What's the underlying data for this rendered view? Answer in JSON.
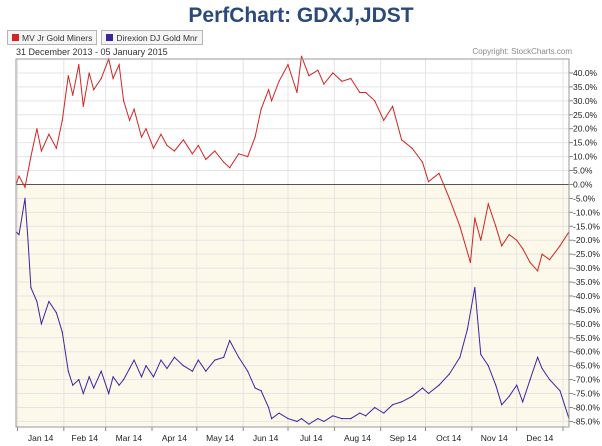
{
  "title": "PerfChart: GDXJ,JDST",
  "date_range": "31 December 2013 - 05 January 2015",
  "copyright": "Copyright: StockCharts.com",
  "colors": {
    "gdxj": "#d42424",
    "jdst": "#3a26a3",
    "zero_line": "#555555"
  },
  "chart_data": {
    "type": "line",
    "title": "PerfChart: GDXJ,JDST",
    "xlabel": "",
    "ylabel": "",
    "x_axis_months": [
      "Jan 14",
      "Feb 14",
      "Mar 14",
      "Apr 14",
      "May 14",
      "Jun 14",
      "Jul 14",
      "Aug 14",
      "Sep 14",
      "Oct 14",
      "Nov 14",
      "Dec 14"
    ],
    "ylim": [
      -87,
      45
    ],
    "yticks": [
      "40.0%",
      "35.0%",
      "30.0%",
      "25.0%",
      "20.0%",
      "15.0%",
      "10.0%",
      "5.0%",
      "0.0%",
      "-5.0%",
      "-10.0%",
      "-15.0%",
      "-20.0%",
      "-25.0%",
      "-30.0%",
      "-35.0%",
      "-40.0%",
      "-45.0%",
      "-50.0%",
      "-55.0%",
      "-60.0%",
      "-65.0%",
      "-70.0%",
      "-75.0%",
      "-80.0%",
      "-85.0%"
    ],
    "ytick_values": [
      40,
      35,
      30,
      25,
      20,
      15,
      10,
      5,
      0,
      -5,
      -10,
      -15,
      -20,
      -25,
      -30,
      -35,
      -40,
      -45,
      -50,
      -55,
      -60,
      -65,
      -70,
      -75,
      -80,
      -85
    ],
    "grid": true,
    "legend_position": "top-left",
    "series": [
      {
        "name": "MV Jr Gold Miners",
        "color": "#d42424",
        "x": [
          "2013-12-31",
          "2014-01-02",
          "2014-01-06",
          "2014-01-10",
          "2014-01-14",
          "2014-01-17",
          "2014-01-22",
          "2014-01-27",
          "2014-01-31",
          "2014-02-04",
          "2014-02-07",
          "2014-02-11",
          "2014-02-14",
          "2014-02-18",
          "2014-02-21",
          "2014-02-26",
          "2014-03-03",
          "2014-03-06",
          "2014-03-10",
          "2014-03-13",
          "2014-03-17",
          "2014-03-20",
          "2014-03-25",
          "2014-03-28",
          "2014-04-02",
          "2014-04-07",
          "2014-04-11",
          "2014-04-16",
          "2014-04-22",
          "2014-04-28",
          "2014-05-02",
          "2014-05-07",
          "2014-05-13",
          "2014-05-19",
          "2014-05-23",
          "2014-05-29",
          "2014-06-04",
          "2014-06-09",
          "2014-06-13",
          "2014-06-18",
          "2014-06-20",
          "2014-06-25",
          "2014-07-01",
          "2014-07-07",
          "2014-07-10",
          "2014-07-15",
          "2014-07-21",
          "2014-07-25",
          "2014-07-31",
          "2014-08-06",
          "2014-08-12",
          "2014-08-18",
          "2014-08-22",
          "2014-08-28",
          "2014-09-03",
          "2014-09-09",
          "2014-09-15",
          "2014-09-22",
          "2014-09-29",
          "2014-10-03",
          "2014-10-10",
          "2014-10-17",
          "2014-10-24",
          "2014-10-31",
          "2014-11-03",
          "2014-11-07",
          "2014-11-12",
          "2014-11-17",
          "2014-11-21",
          "2014-11-26",
          "2014-12-01",
          "2014-12-05",
          "2014-12-10",
          "2014-12-15",
          "2014-12-18",
          "2014-12-23",
          "2014-12-30",
          "2015-01-05"
        ],
        "values": [
          0,
          3,
          -1,
          10,
          20,
          12,
          18,
          13,
          23,
          39,
          32,
          43,
          28,
          40,
          34,
          38,
          45,
          38,
          43,
          30,
          23,
          27,
          17,
          20,
          13,
          18,
          14,
          12,
          16,
          11,
          14,
          9,
          12,
          8,
          6,
          11,
          10,
          17,
          27,
          34,
          30,
          37,
          43,
          33,
          46,
          39,
          41,
          36,
          40,
          37,
          38,
          33,
          33,
          30,
          23,
          28,
          16,
          13,
          8,
          1,
          4,
          -5,
          -15,
          -28,
          -12,
          -20,
          -7,
          -15,
          -22,
          -18,
          -20,
          -23,
          -28,
          -31,
          -25,
          -27,
          -22,
          -17
        ]
      },
      {
        "name": "Direxion DJ Gold Mnr",
        "color": "#3a26a3",
        "x": [
          "2013-12-31",
          "2014-01-02",
          "2014-01-06",
          "2014-01-08",
          "2014-01-10",
          "2014-01-14",
          "2014-01-17",
          "2014-01-22",
          "2014-01-27",
          "2014-01-31",
          "2014-02-04",
          "2014-02-07",
          "2014-02-11",
          "2014-02-14",
          "2014-02-18",
          "2014-02-21",
          "2014-02-26",
          "2014-03-03",
          "2014-03-06",
          "2014-03-10",
          "2014-03-13",
          "2014-03-17",
          "2014-03-20",
          "2014-03-25",
          "2014-03-28",
          "2014-04-02",
          "2014-04-07",
          "2014-04-11",
          "2014-04-16",
          "2014-04-22",
          "2014-04-28",
          "2014-05-02",
          "2014-05-07",
          "2014-05-13",
          "2014-05-19",
          "2014-05-23",
          "2014-05-29",
          "2014-06-04",
          "2014-06-09",
          "2014-06-13",
          "2014-06-18",
          "2014-06-20",
          "2014-06-25",
          "2014-07-01",
          "2014-07-07",
          "2014-07-10",
          "2014-07-15",
          "2014-07-21",
          "2014-07-25",
          "2014-07-31",
          "2014-08-06",
          "2014-08-12",
          "2014-08-18",
          "2014-08-22",
          "2014-08-28",
          "2014-09-03",
          "2014-09-09",
          "2014-09-15",
          "2014-09-22",
          "2014-09-29",
          "2014-10-03",
          "2014-10-10",
          "2014-10-17",
          "2014-10-24",
          "2014-10-29",
          "2014-11-03",
          "2014-11-07",
          "2014-11-12",
          "2014-11-17",
          "2014-11-21",
          "2014-11-26",
          "2014-12-01",
          "2014-12-05",
          "2014-12-10",
          "2014-12-15",
          "2014-12-18",
          "2014-12-23",
          "2014-12-30",
          "2015-01-05"
        ],
        "values": [
          -17,
          -18,
          -5,
          -20,
          -37,
          -42,
          -50,
          -42,
          -46,
          -53,
          -67,
          -72,
          -70,
          -75,
          -69,
          -73,
          -67,
          -75,
          -69,
          -72,
          -70,
          -66,
          -63,
          -69,
          -65,
          -69,
          -63,
          -66,
          -62,
          -65,
          -67,
          -63,
          -67,
          -63,
          -62,
          -56,
          -62,
          -67,
          -73,
          -74,
          -80,
          -84,
          -82,
          -84,
          -85,
          -84,
          -86,
          -84,
          -85,
          -83,
          -84,
          -84,
          -82,
          -83,
          -80,
          -82,
          -79,
          -78,
          -76,
          -73,
          -75,
          -72,
          -68,
          -62,
          -52,
          -37,
          -61,
          -65,
          -72,
          -79,
          -76,
          -72,
          -78,
          -70,
          -62,
          -66,
          -70,
          -74,
          -84
        ]
      }
    ]
  },
  "legend": [
    {
      "label": "MV Jr Gold Miners",
      "color": "#d42424"
    },
    {
      "label": "Direxion DJ Gold Mnr",
      "color": "#3a26a3"
    }
  ]
}
